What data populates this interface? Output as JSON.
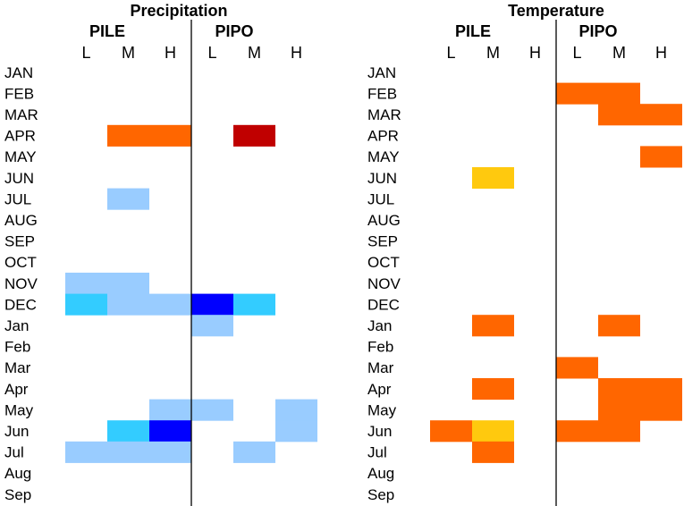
{
  "chart_data": [
    {
      "type": "heatmap",
      "title": "Precipitation",
      "groups": [
        "PILE",
        "PIPO"
      ],
      "columns": [
        "L",
        "M",
        "H",
        "L",
        "M",
        "H"
      ],
      "rows": [
        "JAN",
        "FEB",
        "MAR",
        "APR",
        "MAY",
        "JUN",
        "JUL",
        "AUG",
        "SEP",
        "OCT",
        "NOV",
        "DEC",
        "Jan",
        "Feb",
        "Mar",
        "Apr",
        "May",
        "Jun",
        "Jul",
        "Aug",
        "Sep"
      ],
      "cells": [
        {
          "row": "APR",
          "col": 1,
          "level": "positive-medium"
        },
        {
          "row": "APR",
          "col": 2,
          "level": "positive-medium"
        },
        {
          "row": "APR",
          "col": 4,
          "level": "positive-strong"
        },
        {
          "row": "JUL",
          "col": 1,
          "level": "negative-weak"
        },
        {
          "row": "NOV",
          "col": 0,
          "level": "negative-weak"
        },
        {
          "row": "NOV",
          "col": 1,
          "level": "negative-weak"
        },
        {
          "row": "DEC",
          "col": 0,
          "level": "negative-medium"
        },
        {
          "row": "DEC",
          "col": 1,
          "level": "negative-weak"
        },
        {
          "row": "DEC",
          "col": 2,
          "level": "negative-weak"
        },
        {
          "row": "DEC",
          "col": 3,
          "level": "negative-strong"
        },
        {
          "row": "DEC",
          "col": 4,
          "level": "negative-medium"
        },
        {
          "row": "Jan",
          "col": 3,
          "level": "negative-weak"
        },
        {
          "row": "May",
          "col": 2,
          "level": "negative-weak"
        },
        {
          "row": "May",
          "col": 3,
          "level": "negative-weak"
        },
        {
          "row": "May",
          "col": 5,
          "level": "negative-weak"
        },
        {
          "row": "Jun",
          "col": 1,
          "level": "negative-medium"
        },
        {
          "row": "Jun",
          "col": 2,
          "level": "negative-strong"
        },
        {
          "row": "Jun",
          "col": 5,
          "level": "negative-weak"
        },
        {
          "row": "Jul",
          "col": 0,
          "level": "negative-weak"
        },
        {
          "row": "Jul",
          "col": 1,
          "level": "negative-weak"
        },
        {
          "row": "Jul",
          "col": 2,
          "level": "negative-weak"
        },
        {
          "row": "Jul",
          "col": 4,
          "level": "negative-weak"
        }
      ]
    },
    {
      "type": "heatmap",
      "title": "Temperature",
      "groups": [
        "PILE",
        "PIPO"
      ],
      "columns": [
        "L",
        "M",
        "H",
        "L",
        "M",
        "H"
      ],
      "rows": [
        "JAN",
        "FEB",
        "MAR",
        "APR",
        "MAY",
        "JUN",
        "JUL",
        "AUG",
        "SEP",
        "OCT",
        "NOV",
        "DEC",
        "Jan",
        "Feb",
        "Mar",
        "Apr",
        "May",
        "Jun",
        "Jul",
        "Aug",
        "Sep"
      ],
      "cells": [
        {
          "row": "FEB",
          "col": 3,
          "level": "positive-medium"
        },
        {
          "row": "FEB",
          "col": 4,
          "level": "positive-medium"
        },
        {
          "row": "MAR",
          "col": 4,
          "level": "positive-medium"
        },
        {
          "row": "MAR",
          "col": 5,
          "level": "positive-medium"
        },
        {
          "row": "MAY",
          "col": 5,
          "level": "positive-medium"
        },
        {
          "row": "JUN",
          "col": 1,
          "level": "positive-weak"
        },
        {
          "row": "Jan",
          "col": 1,
          "level": "positive-medium"
        },
        {
          "row": "Jan",
          "col": 4,
          "level": "positive-medium"
        },
        {
          "row": "Mar",
          "col": 3,
          "level": "positive-medium"
        },
        {
          "row": "Apr",
          "col": 1,
          "level": "positive-medium"
        },
        {
          "row": "Apr",
          "col": 4,
          "level": "positive-medium"
        },
        {
          "row": "Apr",
          "col": 5,
          "level": "positive-medium"
        },
        {
          "row": "May",
          "col": 4,
          "level": "positive-medium"
        },
        {
          "row": "May",
          "col": 5,
          "level": "positive-medium"
        },
        {
          "row": "Jun",
          "col": 0,
          "level": "positive-medium"
        },
        {
          "row": "Jun",
          "col": 1,
          "level": "positive-weak"
        },
        {
          "row": "Jun",
          "col": 3,
          "level": "positive-medium"
        },
        {
          "row": "Jun",
          "col": 4,
          "level": "positive-medium"
        },
        {
          "row": "Jul",
          "col": 1,
          "level": "positive-medium"
        }
      ]
    }
  ],
  "colors": {
    "positive-strong": "#c00000",
    "positive-medium": "#ff6600",
    "positive-weak": "#ffc90e",
    "negative-weak": "#99ccff",
    "negative-medium": "#33ccff",
    "negative-strong": "#0000ff",
    "divider": "#000000"
  }
}
